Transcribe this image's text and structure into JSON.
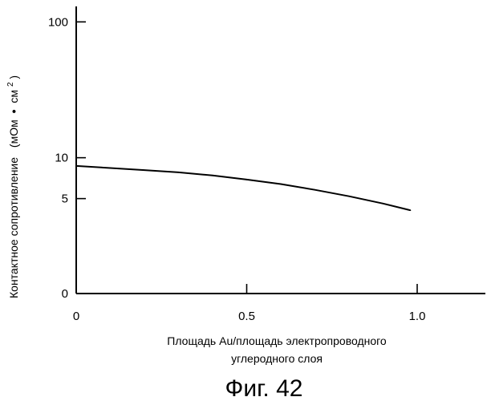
{
  "chart_data": {
    "type": "line",
    "scale": "log",
    "title": "",
    "xlabel": [
      "Площадь Au/площадь электропроводного",
      "углеродного слоя"
    ],
    "ylabel": {
      "text": "Контактное сопротивление",
      "unit_prefix": "(мОм",
      "unit_dot": "•",
      "unit_main": "см",
      "unit_sup": "2",
      "unit_close": ")"
    },
    "caption": "Фиг. 42",
    "xlim": [
      0,
      1.2
    ],
    "ylim": [
      1,
      130
    ],
    "x_ticks": [
      {
        "value": 0,
        "label": "0"
      },
      {
        "value": 0.5,
        "label": "0.5"
      },
      {
        "value": 1.0,
        "label": "1.0"
      }
    ],
    "y_ticks": [
      {
        "value": 1,
        "label": "0"
      },
      {
        "value": 5,
        "label": "5"
      },
      {
        "value": 10,
        "label": "10"
      },
      {
        "value": 100,
        "label": "100"
      }
    ],
    "grid": false,
    "series": [
      {
        "x": [
          0,
          0.1,
          0.2,
          0.3,
          0.4,
          0.5,
          0.6,
          0.7,
          0.8,
          0.9,
          0.98
        ],
        "y": [
          8.7,
          8.4,
          8.1,
          7.8,
          7.4,
          6.9,
          6.4,
          5.8,
          5.2,
          4.6,
          4.1
        ]
      }
    ]
  }
}
